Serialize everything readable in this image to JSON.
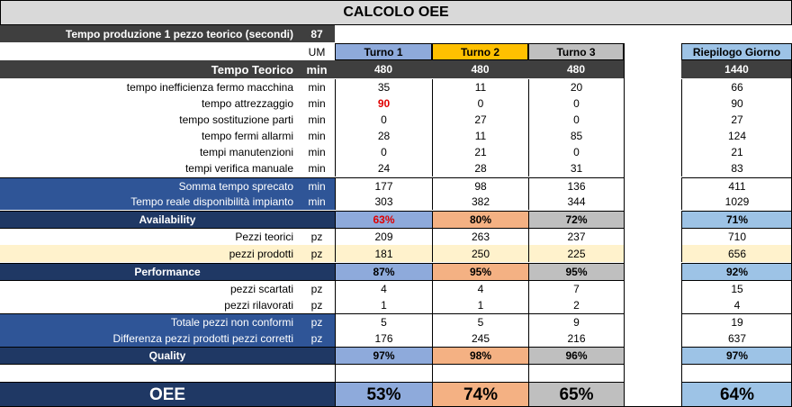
{
  "title": "CALCOLO OEE",
  "tempo_produzione": {
    "label": "Tempo produzione 1 pezzo teorico (secondi)",
    "value": "87"
  },
  "header": {
    "um": "UM",
    "turno1": "Turno 1",
    "turno2": "Turno 2",
    "turno3": "Turno 3",
    "riepilogo": "Riepilogo Giorno"
  },
  "tempo_teorico": {
    "label": "Tempo Teorico",
    "um": "min",
    "t1": "480",
    "t2": "480",
    "t3": "480",
    "tot": "1440"
  },
  "inefficienza": {
    "label": "tempo inefficienza fermo macchina",
    "um": "min",
    "t1": "35",
    "t2": "11",
    "t3": "20",
    "tot": "66"
  },
  "attrezzaggio": {
    "label": "tempo attrezzaggio",
    "um": "min",
    "t1": "90",
    "t2": "0",
    "t3": "0",
    "tot": "90"
  },
  "sostituzione": {
    "label": "tempo sostituzione parti",
    "um": "min",
    "t1": "0",
    "t2": "27",
    "t3": "0",
    "tot": "27"
  },
  "allarmi": {
    "label": "tempo fermi allarmi",
    "um": "min",
    "t1": "28",
    "t2": "11",
    "t3": "85",
    "tot": "124"
  },
  "manutenzioni": {
    "label": "tempi manutenzioni",
    "um": "min",
    "t1": "0",
    "t2": "21",
    "t3": "0",
    "tot": "21"
  },
  "verifica": {
    "label": "tempi verifica manuale",
    "um": "min",
    "t1": "24",
    "t2": "28",
    "t3": "31",
    "tot": "83"
  },
  "sprecato": {
    "label": "Somma tempo sprecato",
    "um": "min",
    "t1": "177",
    "t2": "98",
    "t3": "136",
    "tot": "411"
  },
  "disponibilita": {
    "label": "Tempo reale disponibilità impianto",
    "um": "min",
    "t1": "303",
    "t2": "382",
    "t3": "344",
    "tot": "1029"
  },
  "availability": {
    "label": "Availability",
    "t1": "63%",
    "t2": "80%",
    "t3": "72%",
    "tot": "71%"
  },
  "pezzi_teorici": {
    "label": "Pezzi teorici",
    "um": "pz",
    "t1": "209",
    "t2": "263",
    "t3": "237",
    "tot": "710"
  },
  "pezzi_prodotti": {
    "label": "pezzi prodotti",
    "um": "pz",
    "t1": "181",
    "t2": "250",
    "t3": "225",
    "tot": "656"
  },
  "performance": {
    "label": "Performance",
    "t1": "87%",
    "t2": "95%",
    "t3": "95%",
    "tot": "92%"
  },
  "scartati": {
    "label": "pezzi scartati",
    "um": "pz",
    "t1": "4",
    "t2": "4",
    "t3": "7",
    "tot": "15"
  },
  "rilavorati": {
    "label": "pezzi rilavorati",
    "um": "pz",
    "t1": "1",
    "t2": "1",
    "t3": "2",
    "tot": "4"
  },
  "non_conformi": {
    "label": "Totale pezzi non conformi",
    "um": "pz",
    "t1": "5",
    "t2": "5",
    "t3": "9",
    "tot": "19"
  },
  "differenza": {
    "label": "Differenza pezzi prodotti pezzi corretti",
    "um": "pz",
    "t1": "176",
    "t2": "245",
    "t3": "216",
    "tot": "637"
  },
  "quality": {
    "label": "Quality",
    "t1": "97%",
    "t2": "98%",
    "t3": "96%",
    "tot": "97%"
  },
  "oee": {
    "label": "OEE",
    "t1": "53%",
    "t2": "74%",
    "t3": "65%",
    "tot": "64%"
  },
  "colors": {
    "dark": "#3f3f3f",
    "navy": "#1f3864",
    "blue": "#2f5597",
    "turno1": "#8eaadb",
    "turno2": "#f4b183",
    "turno3": "#bfbfbf",
    "riepilogo": "#9dc3e6",
    "alert": "#e00000"
  }
}
